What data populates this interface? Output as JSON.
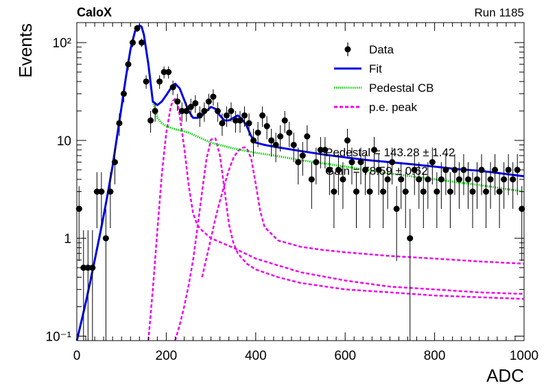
{
  "header": {
    "left_label": "CaloX",
    "right_label": "Run 1185"
  },
  "fit_text": {
    "line1": "Pedestal = 143.28 ± 1.42",
    "line2": "Gain = 78.59 ± 0.62"
  },
  "chart_data": {
    "type": "scatter",
    "xlabel": "ADC",
    "ylabel": "Events",
    "xlim": [
      0,
      1000
    ],
    "ylim": [
      0.09,
      160
    ],
    "log_y": true,
    "grid": false,
    "legend_position": "top-right",
    "x_ticks": [
      "0",
      "200",
      "400",
      "600",
      "800",
      "1000"
    ],
    "y_ticks": [
      "10⁻¹",
      "1",
      "10",
      "10²"
    ],
    "colors": {
      "data": "#000000",
      "fit": "#0000e6",
      "pedestal": "#00d000",
      "pe": "#ee00ee"
    },
    "legend": [
      {
        "label": "Data",
        "style": "marker"
      },
      {
        "label": "Fit",
        "style": "solid",
        "color": "#0000e6"
      },
      {
        "label": "Pedestal CB",
        "style": "dotted",
        "color": "#00d000"
      },
      {
        "label": "p.e. peak",
        "style": "dashed",
        "color": "#ee00ee"
      }
    ],
    "data_points": {
      "x": [
        5,
        15,
        25,
        35,
        45,
        55,
        65,
        75,
        85,
        95,
        105,
        115,
        125,
        135,
        145,
        155,
        165,
        175,
        185,
        195,
        205,
        215,
        225,
        235,
        245,
        255,
        265,
        275,
        285,
        295,
        305,
        315,
        325,
        335,
        345,
        355,
        365,
        375,
        385,
        395,
        405,
        415,
        425,
        435,
        445,
        455,
        465,
        475,
        485,
        495,
        505,
        515,
        525,
        535,
        545,
        555,
        565,
        575,
        585,
        595,
        605,
        615,
        625,
        635,
        645,
        655,
        665,
        675,
        685,
        695,
        705,
        715,
        725,
        735,
        745,
        755,
        765,
        775,
        785,
        795,
        805,
        815,
        825,
        835,
        845,
        855,
        865,
        875,
        885,
        895,
        905,
        915,
        925,
        935,
        945,
        955,
        965,
        975,
        985,
        995
      ],
      "y": [
        2,
        0.5,
        0.5,
        0.5,
        3,
        3,
        1,
        3,
        6,
        15,
        30,
        60,
        100,
        140,
        100,
        40,
        16,
        20,
        40,
        50,
        50,
        35,
        25,
        20,
        20,
        22,
        24,
        18,
        20,
        25,
        28,
        20,
        15,
        18,
        20,
        16,
        16,
        18,
        15,
        10,
        12,
        18,
        14,
        10,
        9,
        11,
        16,
        12,
        9,
        6,
        7,
        11,
        4,
        6,
        8,
        8,
        5,
        3,
        5,
        4,
        10,
        6,
        3,
        6,
        5,
        3,
        8,
        5,
        3,
        4,
        6,
        2,
        4,
        3,
        1,
        5,
        4,
        3,
        4,
        6,
        3,
        4,
        5,
        3,
        5,
        4,
        5,
        4,
        3,
        4,
        5,
        3,
        4,
        5,
        3,
        4,
        5,
        4,
        5,
        2
      ]
    },
    "fit_curve": {
      "x": [
        0,
        10,
        20,
        30,
        40,
        50,
        60,
        70,
        80,
        90,
        100,
        110,
        120,
        130,
        140,
        145,
        150,
        160,
        170,
        180,
        190,
        200,
        210,
        220,
        230,
        240,
        250,
        260,
        270,
        280,
        290,
        300,
        310,
        320,
        330,
        340,
        350,
        360,
        370,
        380,
        390,
        400,
        420,
        450,
        500,
        550,
        600,
        650,
        700,
        750,
        800,
        850,
        900,
        950,
        1000
      ],
      "y": [
        0.09,
        0.14,
        0.22,
        0.36,
        0.6,
        1.0,
        1.7,
        3.0,
        5.5,
        11,
        22,
        45,
        85,
        130,
        150,
        145,
        120,
        60,
        25,
        23,
        25,
        29,
        34,
        38,
        34,
        26,
        20,
        17,
        17,
        18,
        20,
        22,
        21,
        18,
        16,
        16,
        17,
        18,
        16.5,
        14,
        11,
        9.5,
        9,
        8.5,
        7.8,
        7.2,
        6.7,
        6.3,
        6.0,
        5.7,
        5.4,
        5.1,
        4.9,
        4.6,
        4.3
      ]
    },
    "pedestal_curve": {
      "x": [
        0,
        10,
        20,
        30,
        40,
        50,
        60,
        70,
        80,
        90,
        100,
        110,
        120,
        130,
        140,
        145,
        150,
        160,
        170,
        180,
        190,
        200,
        220,
        250,
        300,
        350,
        400,
        450,
        500,
        600,
        700,
        800,
        900,
        1000
      ],
      "y": [
        0.09,
        0.14,
        0.22,
        0.36,
        0.6,
        1.0,
        1.7,
        3.0,
        5.5,
        11,
        22,
        45,
        85,
        130,
        150,
        145,
        120,
        60,
        25,
        17,
        15,
        14,
        13,
        12,
        9.5,
        8.3,
        7.5,
        6.9,
        6.3,
        5.4,
        4.6,
        4.0,
        3.5,
        3.0
      ]
    },
    "pe_peaks": [
      {
        "x": [
          160,
          170,
          180,
          190,
          200,
          210,
          215,
          220,
          225,
          230,
          240,
          250,
          260,
          270,
          280,
          300,
          350,
          400,
          500,
          600,
          700,
          800,
          900,
          1000
        ],
        "y": [
          0.09,
          0.3,
          1.2,
          4.5,
          12,
          22,
          25.5,
          26.5,
          24,
          18,
          8.5,
          3.5,
          1.8,
          1.35,
          1.2,
          1.0,
          0.8,
          0.62,
          0.45,
          0.37,
          0.32,
          0.3,
          0.28,
          0.27
        ]
      },
      {
        "x": [
          220,
          230,
          240,
          250,
          260,
          270,
          280,
          290,
          300,
          310,
          320,
          330,
          340,
          350,
          360,
          380,
          400,
          450,
          500,
          600,
          700,
          800,
          900,
          1000
        ],
        "y": [
          0.09,
          0.13,
          0.2,
          0.33,
          0.6,
          1.3,
          3.0,
          6.5,
          10.2,
          10.5,
          7,
          3.2,
          1.4,
          0.9,
          0.7,
          0.55,
          0.48,
          0.4,
          0.35,
          0.3,
          0.28,
          0.26,
          0.25,
          0.24
        ]
      }
    ],
    "pe_peak_3": {
      "x": [
        280,
        300,
        310,
        320,
        330,
        340,
        350,
        360,
        370,
        375,
        380,
        390,
        400,
        410,
        420,
        450,
        500,
        550,
        600,
        700,
        800,
        900,
        1000
      ],
      "y": [
        0.4,
        1.0,
        1.6,
        2.4,
        3.5,
        5.0,
        6.6,
        7.8,
        8.4,
        8.5,
        8.3,
        6.5,
        3.6,
        1.9,
        1.3,
        0.95,
        0.82,
        0.76,
        0.72,
        0.66,
        0.62,
        0.58,
        0.55
      ]
    }
  }
}
